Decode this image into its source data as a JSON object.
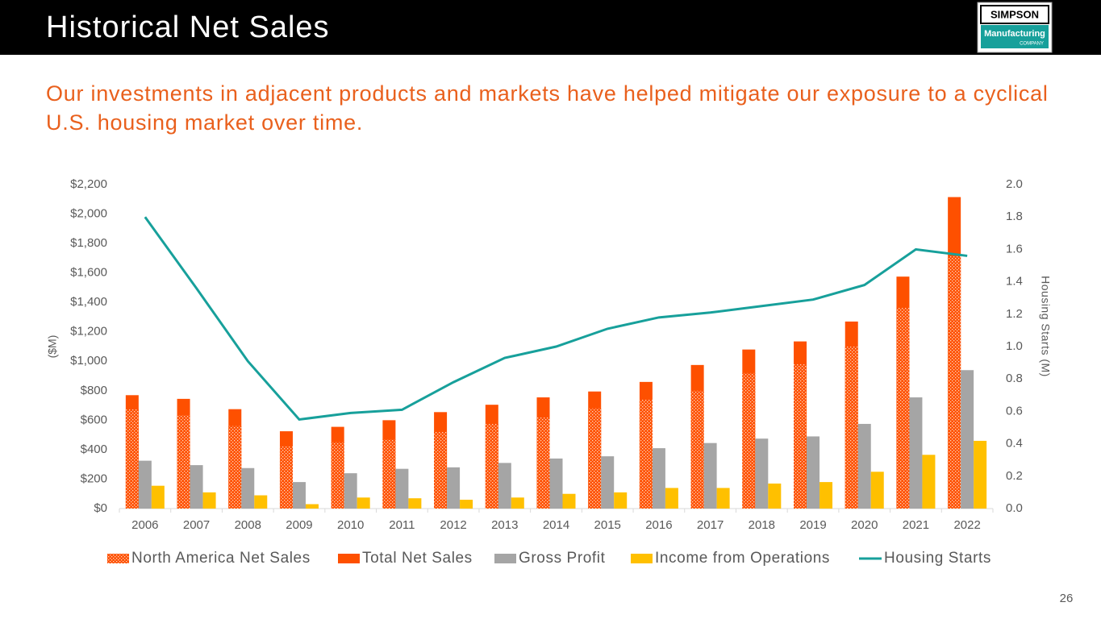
{
  "header": {
    "title": "Historical Net Sales",
    "logo": {
      "top": "SIMPSON",
      "middle": "Manufacturing",
      "bottom": "COMPANY"
    }
  },
  "subtitle": "Our investments in adjacent products and markets have helped mitigate our exposure to a cyclical U.S. housing market over time.",
  "page_number": "26",
  "chart_data": {
    "type": "bar-line",
    "categories": [
      "2006",
      "2007",
      "2008",
      "2009",
      "2010",
      "2011",
      "2012",
      "2013",
      "2014",
      "2015",
      "2016",
      "2017",
      "2018",
      "2019",
      "2020",
      "2021",
      "2022"
    ],
    "series": [
      {
        "name": "North America Net Sales",
        "color": "#fe5000",
        "pattern": "dotted",
        "values": [
          675,
          635,
          560,
          425,
          450,
          470,
          520,
          575,
          620,
          680,
          740,
          800,
          920,
          980,
          1100,
          1365,
          1715
        ]
      },
      {
        "name": "Total Net Sales",
        "color": "#fe5000",
        "values": [
          770,
          745,
          675,
          525,
          555,
          600,
          655,
          705,
          755,
          795,
          860,
          975,
          1080,
          1135,
          1270,
          1575,
          2115
        ]
      },
      {
        "name": "Gross Profit",
        "color": "#a5a5a5",
        "values": [
          325,
          295,
          275,
          180,
          240,
          270,
          280,
          310,
          340,
          355,
          410,
          445,
          475,
          490,
          575,
          755,
          940
        ]
      },
      {
        "name": "Income from Operations",
        "color": "#ffc000",
        "values": [
          155,
          110,
          90,
          30,
          75,
          70,
          60,
          75,
          100,
          110,
          140,
          140,
          170,
          180,
          250,
          365,
          460
        ]
      },
      {
        "name": "Housing Starts",
        "color": "#17a09b",
        "axis": "y2",
        "values": [
          1.8,
          1.36,
          0.91,
          0.55,
          0.59,
          0.61,
          0.78,
          0.93,
          1.0,
          1.11,
          1.18,
          1.21,
          1.25,
          1.29,
          1.38,
          1.6,
          1.56
        ]
      }
    ],
    "ylabel": "($M)",
    "y2label": "Housing Starts (M)",
    "ylim": [
      0,
      2200
    ],
    "yticks": [
      {
        "value": 0,
        "label": "$0"
      },
      {
        "value": 200,
        "label": "$200"
      },
      {
        "value": 400,
        "label": "$400"
      },
      {
        "value": 600,
        "label": "$600"
      },
      {
        "value": 800,
        "label": "$800"
      },
      {
        "value": 1000,
        "label": "$1,000"
      },
      {
        "value": 1200,
        "label": "$1,200"
      },
      {
        "value": 1400,
        "label": "$1,400"
      },
      {
        "value": 1600,
        "label": "$1,600"
      },
      {
        "value": 1800,
        "label": "$1,800"
      },
      {
        "value": 2000,
        "label": "$2,000"
      },
      {
        "value": 2200,
        "label": "$2,200"
      }
    ],
    "y2lim": [
      0,
      2
    ],
    "y2ticks": [
      {
        "value": 0,
        "label": "0.0"
      },
      0.2,
      0.4,
      0.6,
      0.8,
      {
        "value": 1,
        "label": "1.0"
      },
      1.2,
      1.4,
      1.6,
      1.8,
      {
        "value": 2,
        "label": "2.0"
      }
    ],
    "legend": "bottom"
  }
}
